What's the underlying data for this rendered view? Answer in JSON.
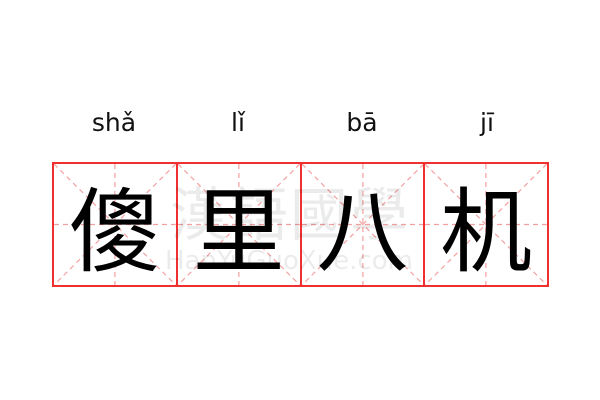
{
  "pinyin": [
    "shǎ",
    "lǐ",
    "bā",
    "jī"
  ],
  "characters": [
    "傻",
    "里",
    "八",
    "机"
  ],
  "watermark": {
    "text": "漢語國學",
    "site": "HanYuGuoXue.com"
  },
  "colors": {
    "grid": "#f03030",
    "guide": "#f5a0a0"
  }
}
